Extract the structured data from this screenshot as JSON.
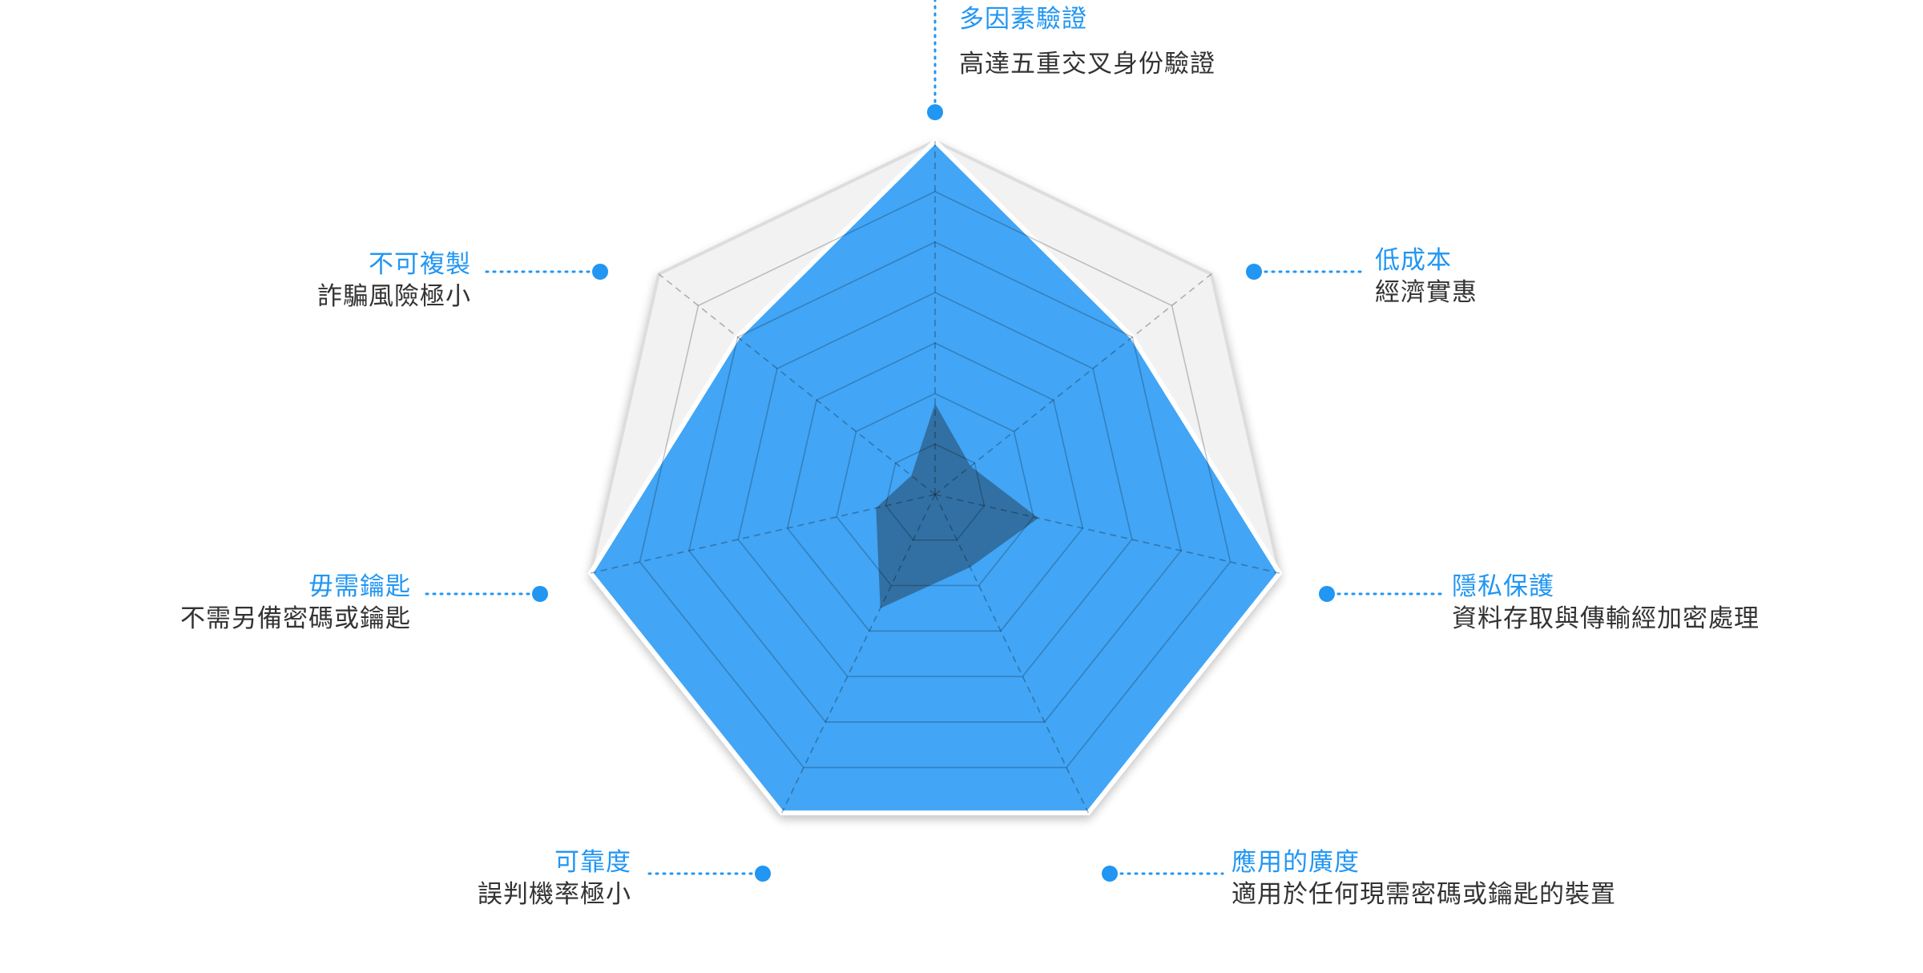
{
  "colors": {
    "accent": "#2196f3",
    "series_fill": "#42a5f5",
    "series_stroke": "#ffffff",
    "inner_fill": "#2e5f87",
    "frame_fill": "#f2f2f2",
    "label_text": "#2196f3",
    "desc_text": "#333333"
  },
  "chart_data": {
    "type": "radar",
    "axes": [
      {
        "title": "多因素驗證",
        "desc": "高達五重交叉身份驗證"
      },
      {
        "title": "低成本",
        "desc": "經濟實惠"
      },
      {
        "title": "隱私保護",
        "desc": "資料存取與傳輸經加密處理"
      },
      {
        "title": "應用的廣度",
        "desc": "適用於任何現需密碼或鑰匙的裝置"
      },
      {
        "title": "可靠度",
        "desc": "誤判機率極小"
      },
      {
        "title": "毋需鑰匙",
        "desc": "不需另備密碼或鑰匙"
      },
      {
        "title": "不可複製",
        "desc": "詐騙風險極小"
      }
    ],
    "rings": 7,
    "max": 7,
    "series": [
      {
        "values": [
          7,
          5,
          7,
          7,
          7,
          7,
          5
        ]
      },
      {
        "values": [
          1.8,
          0.9,
          2.1,
          1.6,
          2.5,
          1.2,
          0.6
        ]
      }
    ],
    "grid": true
  }
}
